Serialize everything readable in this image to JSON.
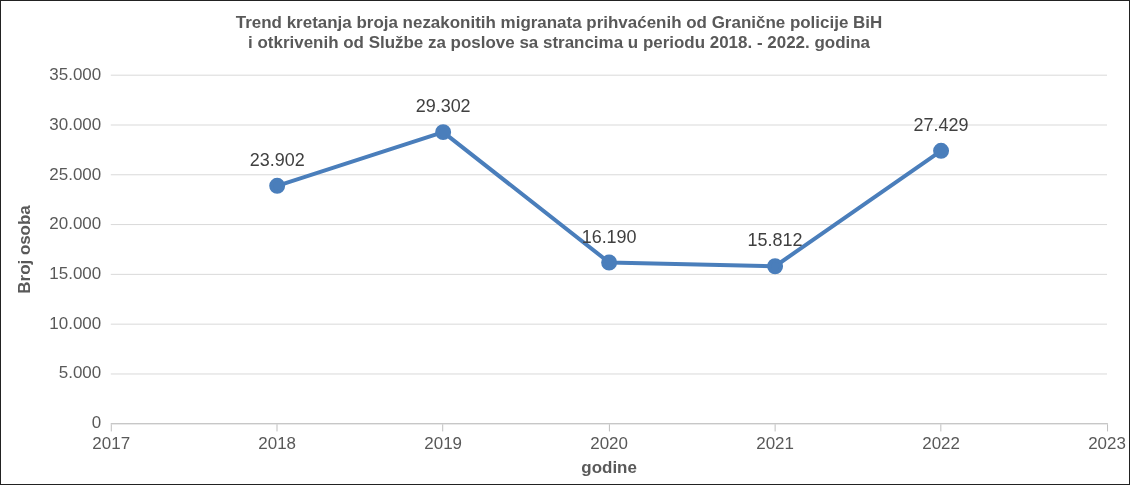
{
  "chart_data": {
    "type": "line",
    "title": "Trend kretanja broja nezakonitih migranata prihvaćenih od Granične policije BiH\ni otkrivenih od Službe za poslove sa strancima u periodu 2018. - 2022. godina",
    "xlabel": "godine",
    "ylabel": "Broj osoba",
    "x": [
      2018,
      2019,
      2020,
      2021,
      2022
    ],
    "series": [
      {
        "color": "#4a7ebb",
        "values": [
          23902,
          29302,
          16190,
          15812,
          27429
        ],
        "value_labels": [
          "23.902",
          "29.302",
          "16.190",
          "15.812",
          "27.429"
        ]
      }
    ],
    "xlim": [
      2017,
      2023
    ],
    "xticks": [
      2017,
      2018,
      2019,
      2020,
      2021,
      2022,
      2023
    ],
    "ylim": [
      0,
      35000
    ],
    "yticks": [
      0,
      {
        "value": 5000,
        "label": "5.000"
      },
      {
        "value": 10000,
        "label": "10.000"
      },
      {
        "value": 15000,
        "label": "15.000"
      },
      {
        "value": 20000,
        "label": "20.000"
      },
      {
        "value": 25000,
        "label": "25.000"
      },
      {
        "value": 30000,
        "label": "30.000"
      },
      {
        "value": 35000,
        "label": "35.000"
      }
    ],
    "grid": "y",
    "legend": false,
    "marker": "circle",
    "line_style": "solid"
  }
}
